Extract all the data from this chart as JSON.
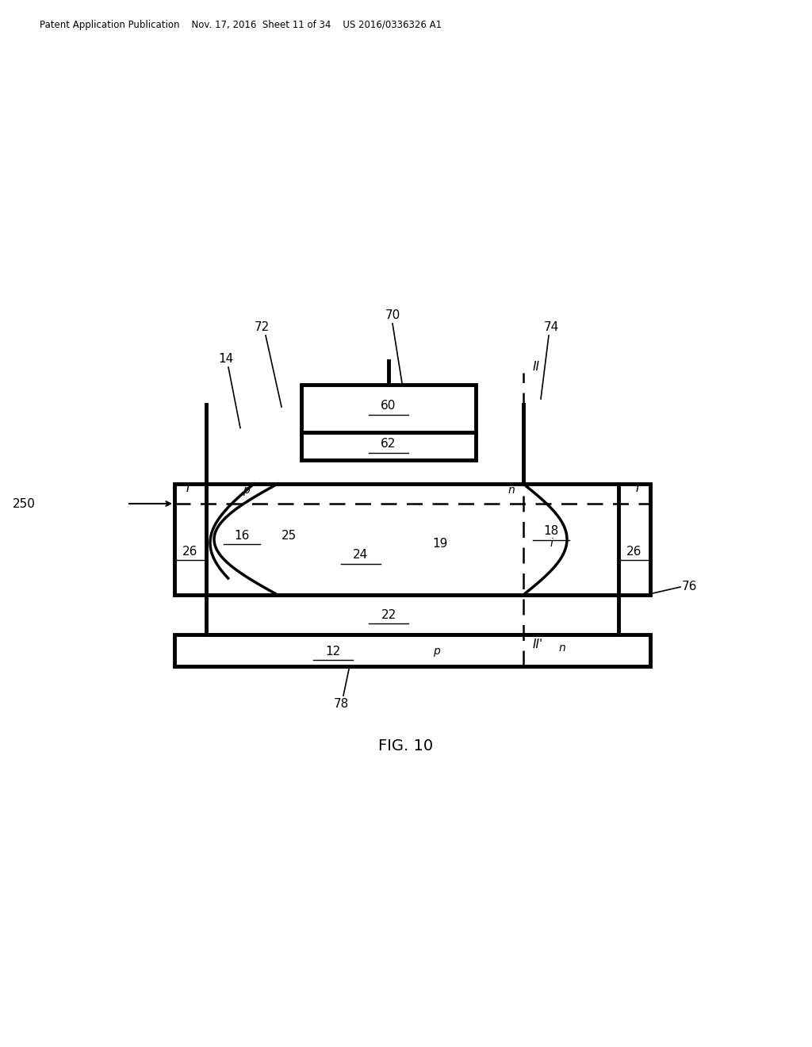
{
  "title": "FIG. 10",
  "patent_header": "Patent Application Publication    Nov. 17, 2016  Sheet 11 of 34    US 2016/0336326 A1",
  "bg_color": "#ffffff",
  "lw": 2.5,
  "fig_label": "FIG. 10"
}
